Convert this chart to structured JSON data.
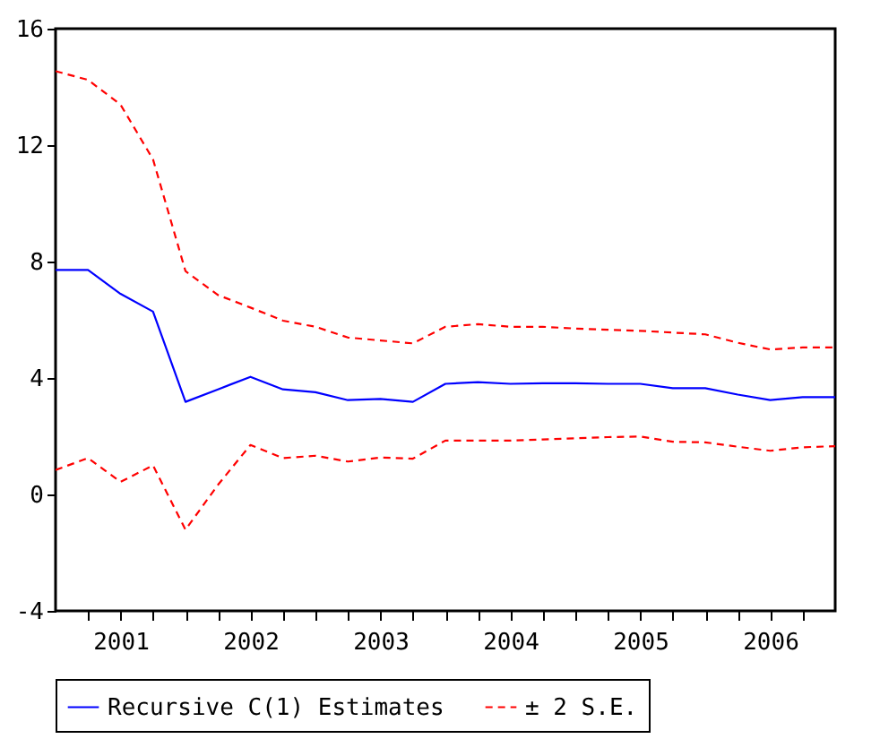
{
  "chart_data": {
    "type": "line",
    "legend": "bottom",
    "x": [
      2000.5,
      2000.75,
      2001,
      2001.25,
      2001.5,
      2001.75,
      2002,
      2002.25,
      2002.5,
      2002.75,
      2003,
      2003.25,
      2003.5,
      2003.75,
      2004,
      2004.25,
      2004.5,
      2004.75,
      2005,
      2005.25,
      2005.5,
      2005.75,
      2006,
      2006.25,
      2006.5
    ],
    "xlim": [
      2000.5,
      2006.5
    ],
    "xticks": [
      {
        "value": 2000.75,
        "label": null
      },
      2001,
      {
        "value": 2001.25,
        "label": null
      },
      {
        "value": 2001.5,
        "label": null
      },
      {
        "value": 2001.75,
        "label": null
      },
      2002,
      {
        "value": 2002.25,
        "label": null
      },
      {
        "value": 2002.5,
        "label": null
      },
      {
        "value": 2002.75,
        "label": null
      },
      2003,
      {
        "value": 2003.25,
        "label": null
      },
      {
        "value": 2003.5,
        "label": null
      },
      {
        "value": 2003.75,
        "label": null
      },
      2004,
      {
        "value": 2004.25,
        "label": null
      },
      {
        "value": 2004.5,
        "label": null
      },
      {
        "value": 2004.75,
        "label": null
      },
      2005,
      {
        "value": 2005.25,
        "label": null
      },
      {
        "value": 2005.5,
        "label": null
      },
      {
        "value": 2005.75,
        "label": null
      },
      2006,
      {
        "value": 2006.25,
        "label": null
      }
    ],
    "ylim": [
      -4,
      16
    ],
    "yticks": [
      -4,
      0,
      4,
      8,
      12,
      16
    ],
    "series": [
      {
        "name": "Recursive C(1) Estimates",
        "color": "#0000ff",
        "line_style": "solid",
        "values": [
          7.71,
          7.71,
          6.89,
          6.28,
          3.18,
          3.61,
          4.04,
          3.61,
          3.51,
          3.24,
          3.28,
          3.18,
          3.8,
          3.86,
          3.8,
          3.82,
          3.82,
          3.8,
          3.8,
          3.65,
          3.65,
          3.43,
          3.24,
          3.34,
          3.34
        ]
      },
      {
        "name": "± 2 S.E.",
        "color": "#ff0000",
        "line_style": "dashed",
        "values": [
          14.54,
          14.24,
          13.39,
          11.51,
          7.67,
          6.85,
          6.42,
          5.97,
          5.76,
          5.39,
          5.29,
          5.19,
          5.76,
          5.85,
          5.76,
          5.76,
          5.7,
          5.66,
          5.62,
          5.56,
          5.5,
          5.21,
          4.98,
          5.05,
          5.05
        ]
      },
      {
        "color": "#ff0000",
        "line_style": "dashed",
        "values": [
          0.84,
          1.25,
          0.43,
          1.0,
          -1.21,
          0.33,
          1.7,
          1.25,
          1.33,
          1.13,
          1.27,
          1.23,
          1.85,
          1.85,
          1.85,
          1.89,
          1.93,
          1.97,
          1.99,
          1.81,
          1.79,
          1.64,
          1.5,
          1.62,
          1.66
        ]
      }
    ]
  }
}
